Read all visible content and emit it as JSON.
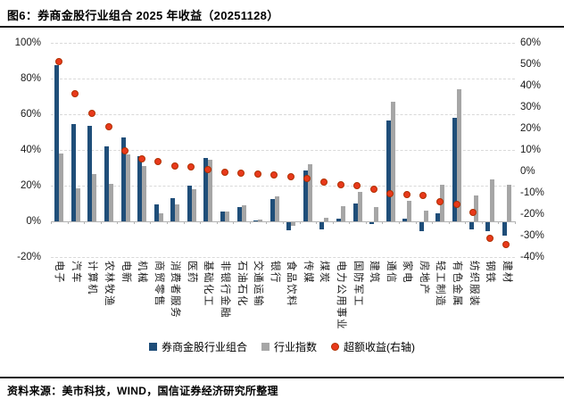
{
  "title": "图6：券商金股行业组合 2025 年收益（20251128）",
  "source": "资料来源：美市科技，WIND，国信证券经济研究所整理",
  "colors": {
    "portfolio_bar": "#1F4E79",
    "index_bar": "#A6A6A6",
    "excess_dot_fill": "#E8391B",
    "excess_dot_border": "#B03000",
    "gridline": "#d9d9d9",
    "axis": "#b3b3b3"
  },
  "chart_data": {
    "type": "bar",
    "subtype": "grouped-bars-with-scatter-overlay",
    "title": "券商金股行业组合 2025 年收益（20251128）",
    "grid": "horizontal-dashed",
    "legend_position": "bottom",
    "categories": [
      "电子",
      "汽车",
      "计算机",
      "农林牧渔",
      "电新",
      "机械",
      "商贸零售",
      "消费者服务",
      "医药",
      "基础化工",
      "非银行金融",
      "石油石化",
      "交通运输",
      "银行",
      "食品饮料",
      "传媒",
      "煤炭",
      "电力公用事业",
      "国防军工",
      "建筑",
      "通信",
      "家电",
      "房地产",
      "轻工制造",
      "有色金属",
      "纺织服装",
      "钢铁",
      "建材"
    ],
    "series": [
      {
        "name": "券商金股行业组合",
        "kind": "bar",
        "axis": "left",
        "color": "#1F4E79",
        "values": [
          87.5,
          54.5,
          53.5,
          42,
          47,
          36.5,
          9.5,
          13,
          20,
          35.5,
          5.5,
          8,
          0.5,
          12.5,
          -4.5,
          28.5,
          -4,
          1.5,
          10,
          -1,
          56.5,
          1.5,
          -5,
          4.5,
          58,
          -4,
          -5,
          -7.5
        ]
      },
      {
        "name": "行业指数",
        "kind": "bar",
        "axis": "left",
        "color": "#A6A6A6",
        "values": [
          38,
          18.5,
          26.5,
          21,
          37.5,
          31,
          4.5,
          9.5,
          18,
          34.5,
          5.5,
          9,
          1,
          14,
          -2,
          32,
          2,
          8.5,
          16.5,
          8,
          67,
          11.5,
          6,
          20.5,
          74,
          14.5,
          23.5,
          20.5
        ]
      },
      {
        "name": "超额收益(右轴)",
        "kind": "scatter",
        "axis": "right",
        "color": "#E8391B",
        "values": [
          51,
          36,
          27,
          20.5,
          9.5,
          5.5,
          4.5,
          2.5,
          2,
          0.5,
          -0.5,
          -1,
          -1.5,
          -2,
          -2.5,
          -3.5,
          -5,
          -6.5,
          -7,
          -8.5,
          -10.5,
          -11,
          -11.5,
          -14.5,
          -15.5,
          -19.5,
          -31.5,
          -34.5
        ]
      }
    ],
    "left_axis": {
      "min": -20,
      "max": 100,
      "tick_values": [
        100,
        80,
        60,
        40,
        20,
        0,
        -20
      ],
      "tick_labels": [
        "100%",
        "80%",
        "60%",
        "40%",
        "20%",
        "0%",
        "-20%"
      ]
    },
    "right_axis": {
      "min": -40,
      "max": 60,
      "tick_values": [
        60,
        50,
        40,
        30,
        20,
        10,
        0,
        -10,
        -20,
        -30,
        -40
      ],
      "tick_labels": [
        "60%",
        "50%",
        "40%",
        "30%",
        "20%",
        "10%",
        "0%",
        "-10%",
        "-20%",
        "-30%",
        "-40%"
      ]
    }
  }
}
